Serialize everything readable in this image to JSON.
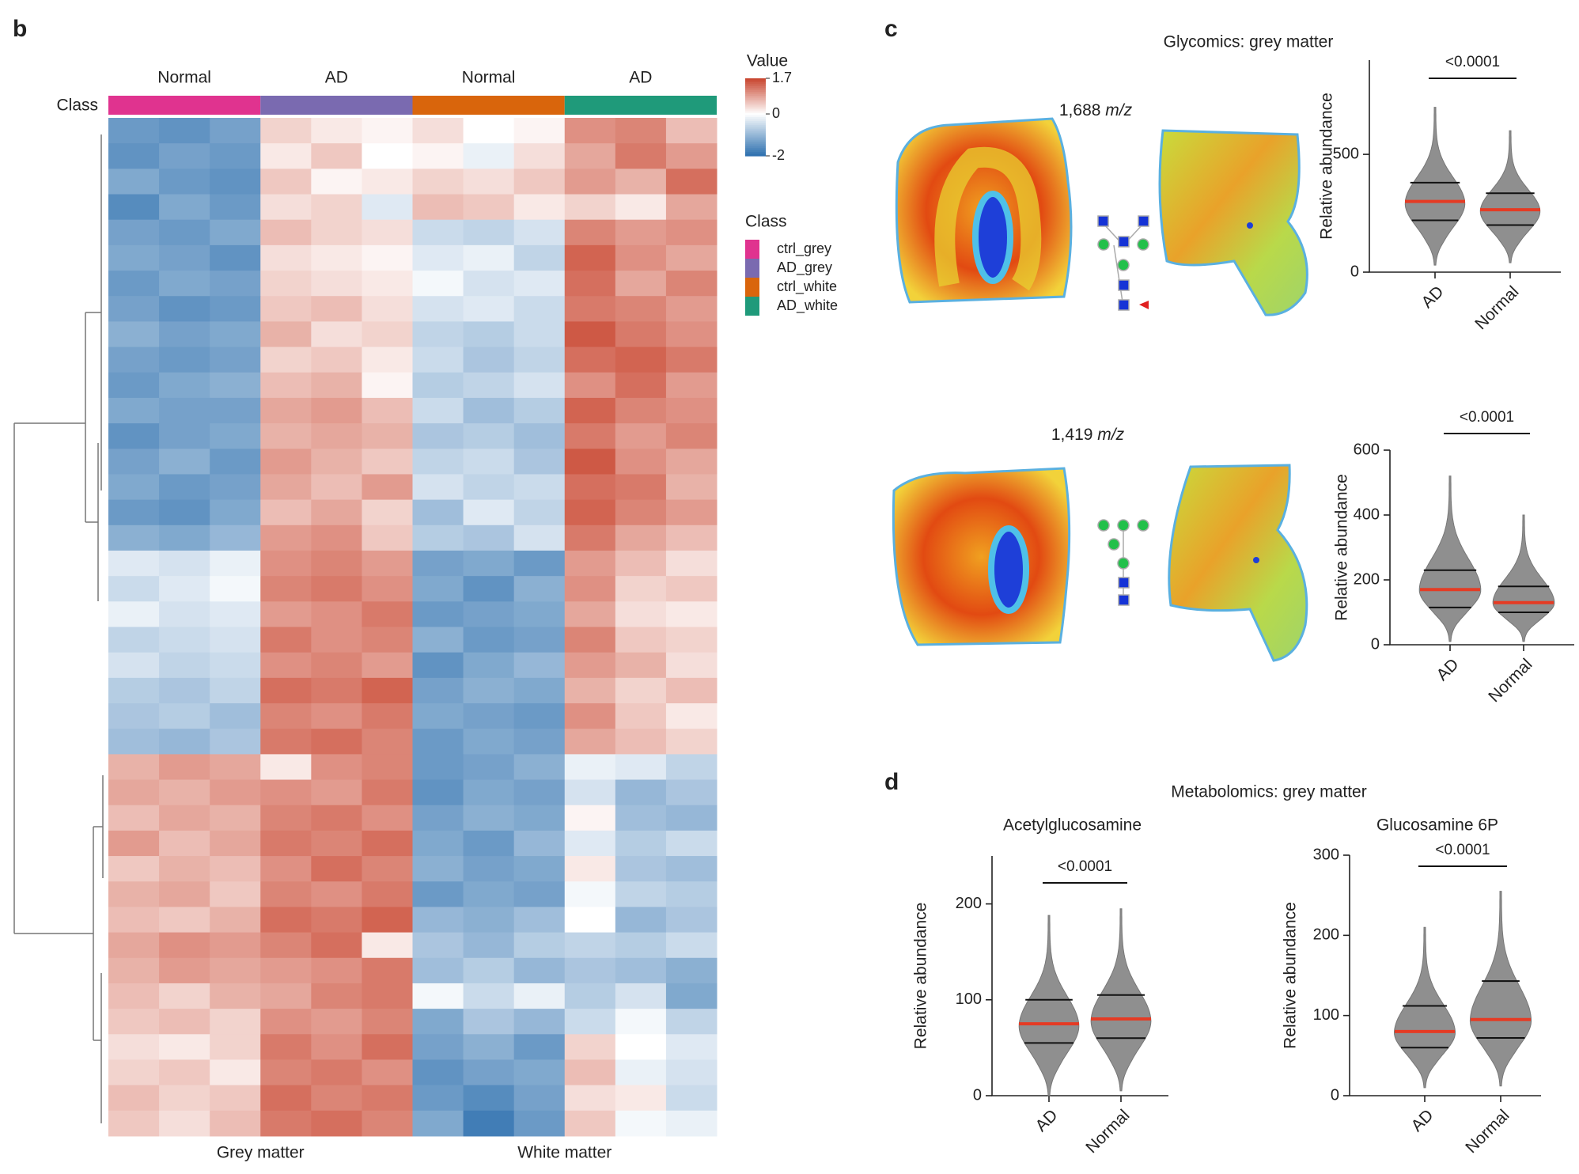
{
  "panel_b": "b",
  "panel_c": {
    "letter": "c",
    "title": "Glycomics: grey matter",
    "mz": [
      {
        "value": "1,688",
        "unit": "m/z"
      },
      {
        "value": "1,419",
        "unit": "m/z"
      }
    ]
  },
  "panel_d": {
    "letter": "d",
    "title": "Metabolomics: grey matter"
  },
  "chart_data": [
    {
      "type": "heatmap",
      "class_label": "Class",
      "group_labels": [
        "Normal",
        "AD",
        "Normal",
        "AD"
      ],
      "matter_labels": [
        "Grey matter",
        "White matter"
      ],
      "legend_title": "Class",
      "classes": [
        {
          "name": "ctrl_grey",
          "color": "#e0338f"
        },
        {
          "name": "AD_grey",
          "color": "#7a6ab0"
        },
        {
          "name": "ctrl_white",
          "color": "#d9650c"
        },
        {
          "name": "AD_white",
          "color": "#1f9a7a"
        }
      ],
      "colorbar_title": "Value",
      "clim": [
        -2,
        1.7
      ],
      "cticks": [
        1.7,
        0,
        -2
      ],
      "low_color": "#2c6fae",
      "mid_color": "#ffffff",
      "high_color": "#c8432c",
      "values": [
        [
          -1.4,
          -1.5,
          -1.3,
          0.4,
          0.2,
          0.1,
          0.3,
          0.0,
          0.1,
          1.0,
          1.1,
          0.6
        ],
        [
          -1.5,
          -1.3,
          -1.4,
          0.2,
          0.5,
          0.0,
          0.1,
          -0.2,
          0.3,
          0.8,
          1.2,
          0.9
        ],
        [
          -1.2,
          -1.4,
          -1.5,
          0.5,
          0.1,
          0.2,
          0.4,
          0.3,
          0.5,
          0.9,
          0.7,
          1.3
        ],
        [
          -1.6,
          -1.2,
          -1.4,
          0.3,
          0.4,
          -0.3,
          0.6,
          0.5,
          0.2,
          0.4,
          0.2,
          0.8
        ],
        [
          -1.3,
          -1.4,
          -1.2,
          0.6,
          0.4,
          0.3,
          -0.5,
          -0.6,
          -0.4,
          1.1,
          0.9,
          1.0
        ],
        [
          -1.2,
          -1.3,
          -1.5,
          0.3,
          0.2,
          0.1,
          -0.3,
          -0.2,
          -0.6,
          1.4,
          1.0,
          0.8
        ],
        [
          -1.4,
          -1.2,
          -1.3,
          0.4,
          0.3,
          0.2,
          -0.1,
          -0.4,
          -0.3,
          1.3,
          0.8,
          1.1
        ],
        [
          -1.3,
          -1.5,
          -1.4,
          0.5,
          0.6,
          0.3,
          -0.4,
          -0.3,
          -0.5,
          1.2,
          1.1,
          0.9
        ],
        [
          -1.1,
          -1.3,
          -1.2,
          0.7,
          0.3,
          0.4,
          -0.6,
          -0.7,
          -0.5,
          1.5,
          1.2,
          1.0
        ],
        [
          -1.3,
          -1.4,
          -1.3,
          0.4,
          0.5,
          0.2,
          -0.5,
          -0.8,
          -0.6,
          1.3,
          1.4,
          1.2
        ],
        [
          -1.4,
          -1.2,
          -1.1,
          0.6,
          0.7,
          0.1,
          -0.7,
          -0.6,
          -0.4,
          1.0,
          1.3,
          0.9
        ],
        [
          -1.2,
          -1.3,
          -1.3,
          0.8,
          0.9,
          0.6,
          -0.5,
          -0.9,
          -0.7,
          1.4,
          1.1,
          1.0
        ],
        [
          -1.5,
          -1.3,
          -1.2,
          0.7,
          0.8,
          0.7,
          -0.8,
          -0.7,
          -0.9,
          1.2,
          0.9,
          1.1
        ],
        [
          -1.3,
          -1.1,
          -1.4,
          0.9,
          0.7,
          0.5,
          -0.6,
          -0.5,
          -0.8,
          1.5,
          1.0,
          0.8
        ],
        [
          -1.2,
          -1.4,
          -1.3,
          0.8,
          0.6,
          0.9,
          -0.4,
          -0.6,
          -0.5,
          1.3,
          1.2,
          0.7
        ],
        [
          -1.4,
          -1.5,
          -1.2,
          0.6,
          0.8,
          0.4,
          -0.9,
          -0.3,
          -0.6,
          1.4,
          1.1,
          0.9
        ],
        [
          -1.1,
          -1.2,
          -1.0,
          0.9,
          1.0,
          0.5,
          -0.7,
          -0.8,
          -0.4,
          1.2,
          0.8,
          0.6
        ],
        [
          -0.3,
          -0.4,
          -0.2,
          1.0,
          1.1,
          0.9,
          -1.3,
          -1.2,
          -1.4,
          0.9,
          0.6,
          0.3
        ],
        [
          -0.5,
          -0.3,
          -0.1,
          1.1,
          1.2,
          1.0,
          -1.2,
          -1.5,
          -1.1,
          1.0,
          0.4,
          0.5
        ],
        [
          -0.2,
          -0.4,
          -0.3,
          0.9,
          1.0,
          1.2,
          -1.4,
          -1.3,
          -1.2,
          0.8,
          0.3,
          0.2
        ],
        [
          -0.6,
          -0.5,
          -0.4,
          1.2,
          1.0,
          1.1,
          -1.1,
          -1.4,
          -1.3,
          1.1,
          0.5,
          0.4
        ],
        [
          -0.4,
          -0.6,
          -0.5,
          1.0,
          1.1,
          0.9,
          -1.5,
          -1.2,
          -1.0,
          0.9,
          0.7,
          0.3
        ],
        [
          -0.7,
          -0.8,
          -0.6,
          1.3,
          1.2,
          1.4,
          -1.3,
          -1.1,
          -1.2,
          0.7,
          0.4,
          0.6
        ],
        [
          -0.8,
          -0.7,
          -0.9,
          1.1,
          1.0,
          1.2,
          -1.2,
          -1.3,
          -1.4,
          1.0,
          0.5,
          0.2
        ],
        [
          -0.9,
          -1.0,
          -0.8,
          1.2,
          1.3,
          1.1,
          -1.4,
          -1.2,
          -1.3,
          0.8,
          0.6,
          0.4
        ],
        [
          0.7,
          0.9,
          0.8,
          0.2,
          1.0,
          1.1,
          -1.4,
          -1.3,
          -1.1,
          -0.2,
          -0.3,
          -0.6
        ],
        [
          0.8,
          0.7,
          0.9,
          1.0,
          0.9,
          1.2,
          -1.5,
          -1.2,
          -1.3,
          -0.4,
          -1.0,
          -0.8
        ],
        [
          0.6,
          0.8,
          0.7,
          1.1,
          1.2,
          1.0,
          -1.3,
          -1.1,
          -1.2,
          0.1,
          -0.9,
          -1.0
        ],
        [
          0.9,
          0.6,
          0.8,
          1.2,
          1.1,
          1.3,
          -1.2,
          -1.4,
          -1.0,
          -0.3,
          -0.7,
          -0.5
        ],
        [
          0.5,
          0.7,
          0.6,
          1.0,
          1.3,
          1.1,
          -1.1,
          -1.3,
          -1.2,
          0.2,
          -0.8,
          -0.9
        ],
        [
          0.7,
          0.8,
          0.5,
          1.1,
          1.0,
          1.2,
          -1.4,
          -1.2,
          -1.3,
          -0.1,
          -0.6,
          -0.7
        ],
        [
          0.6,
          0.5,
          0.7,
          1.3,
          1.2,
          1.4,
          -1.0,
          -1.1,
          -0.9,
          0.0,
          -1.0,
          -0.8
        ],
        [
          0.8,
          1.0,
          0.9,
          1.1,
          1.3,
          0.2,
          -0.8,
          -1.0,
          -0.7,
          -0.6,
          -0.7,
          -0.5
        ],
        [
          0.7,
          0.9,
          0.8,
          0.9,
          1.0,
          1.2,
          -0.9,
          -0.7,
          -1.0,
          -0.8,
          -0.9,
          -1.1
        ],
        [
          0.6,
          0.4,
          0.7,
          0.8,
          1.1,
          1.2,
          -0.1,
          -0.5,
          -0.2,
          -0.7,
          -0.4,
          -1.2
        ],
        [
          0.5,
          0.6,
          0.4,
          1.0,
          0.9,
          1.1,
          -1.2,
          -0.8,
          -1.0,
          -0.5,
          -0.1,
          -0.6
        ],
        [
          0.3,
          0.2,
          0.4,
          1.2,
          1.0,
          1.3,
          -1.3,
          -1.1,
          -1.4,
          0.4,
          0.0,
          -0.3
        ],
        [
          0.4,
          0.5,
          0.2,
          1.1,
          1.2,
          1.0,
          -1.5,
          -1.3,
          -1.2,
          0.6,
          -0.2,
          -0.4
        ],
        [
          0.6,
          0.4,
          0.5,
          1.3,
          1.1,
          1.2,
          -1.4,
          -1.6,
          -1.3,
          0.3,
          0.2,
          -0.5
        ],
        [
          0.5,
          0.3,
          0.6,
          1.2,
          1.3,
          1.1,
          -1.2,
          -1.8,
          -1.4,
          0.5,
          -0.1,
          -0.2
        ]
      ]
    },
    {
      "type": "violin",
      "ylabel": "Relative abundance",
      "categories": [
        "AD",
        "Normal"
      ],
      "significance": "<0.0001",
      "ylim": [
        0,
        900
      ],
      "yticks": [
        0,
        500
      ],
      "color": "#8f8f8f",
      "median_color": "#e53b24",
      "stats": {
        "min": [
          30,
          40
        ],
        "q1": [
          220,
          200
        ],
        "median": [
          300,
          265
        ],
        "q3": [
          380,
          335
        ],
        "max": [
          700,
          600
        ]
      }
    },
    {
      "type": "violin",
      "ylabel": "Relative abundance",
      "categories": [
        "AD",
        "Normal"
      ],
      "significance": "<0.0001",
      "ylim": [
        0,
        600
      ],
      "yticks": [
        0,
        200,
        400,
        600
      ],
      "color": "#8f8f8f",
      "median_color": "#e53b24",
      "stats": {
        "min": [
          10,
          10
        ],
        "q1": [
          115,
          100
        ],
        "median": [
          170,
          130
        ],
        "q3": [
          230,
          180
        ],
        "max": [
          520,
          400
        ]
      }
    },
    {
      "type": "violin",
      "title": "Acetylglucosamine",
      "ylabel": "Relative abundance",
      "categories": [
        "AD",
        "Normal"
      ],
      "significance": "<0.0001",
      "ylim": [
        0,
        250
      ],
      "yticks": [
        0,
        100,
        200
      ],
      "color": "#8f8f8f",
      "median_color": "#e53b24",
      "stats": {
        "min": [
          0,
          5
        ],
        "q1": [
          55,
          60
        ],
        "median": [
          75,
          80
        ],
        "q3": [
          100,
          105
        ],
        "max": [
          188,
          195
        ]
      }
    },
    {
      "type": "violin",
      "title": "Glucosamine 6P",
      "ylabel": "Relative abundance",
      "categories": [
        "AD",
        "Normal"
      ],
      "significance": "<0.0001",
      "ylim": [
        0,
        300
      ],
      "yticks": [
        0,
        100,
        200,
        300
      ],
      "color": "#8f8f8f",
      "median_color": "#e53b24",
      "stats": {
        "min": [
          10,
          12
        ],
        "q1": [
          60,
          72
        ],
        "median": [
          80,
          95
        ],
        "q3": [
          112,
          143
        ],
        "max": [
          210,
          255
        ]
      }
    }
  ]
}
